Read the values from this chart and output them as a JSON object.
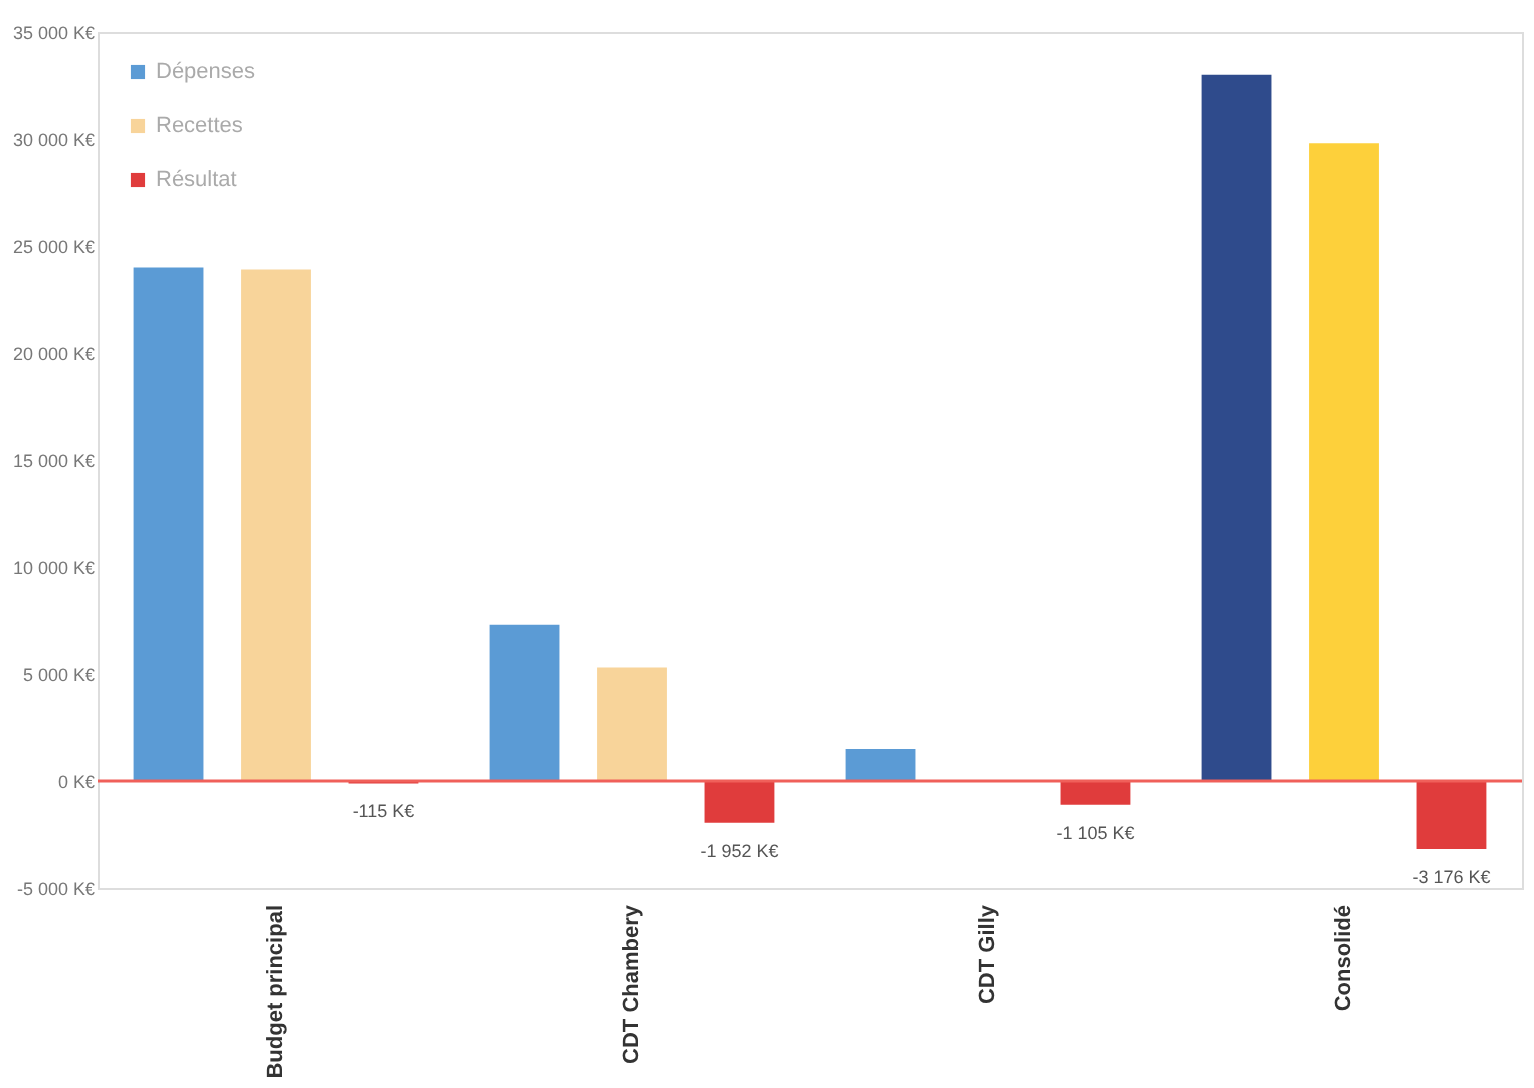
{
  "chart_data": {
    "type": "bar",
    "categories": [
      "Budget principal",
      "CDT Chambery",
      "CDT Gilly",
      "Consolidé"
    ],
    "series": [
      {
        "name": "Dépenses",
        "color": "#5b9bd5",
        "colors": [
          "#5b9bd5",
          "#5b9bd5",
          "#5b9bd5",
          "#2f4b8c"
        ],
        "values": [
          24000,
          7300,
          1500,
          33000
        ]
      },
      {
        "name": "Recettes",
        "color": "#f8d49a",
        "colors": [
          "#f8d49a",
          "#f8d49a",
          "#f8d49a",
          "#fdd03b"
        ],
        "values": [
          23900,
          5300,
          null,
          29800
        ]
      },
      {
        "name": "Résultat",
        "color": "#e03c3c",
        "colors": [
          "#e03c3c",
          "#e03c3c",
          "#e03c3c",
          "#e03c3c"
        ],
        "values": [
          -115,
          -1952,
          -1105,
          -3176
        ],
        "value_labels": [
          "-115 K€",
          "-1 952 K€",
          "-1 105 K€",
          "-3 176 K€"
        ]
      }
    ],
    "ylim": [
      -5000,
      35000
    ],
    "yticks": [
      {
        "value": -5000,
        "label": "-5 000 K€"
      },
      {
        "value": 0,
        "label": "0 K€"
      },
      {
        "value": 5000,
        "label": "5 000 K€"
      },
      {
        "value": 10000,
        "label": "10 000 K€"
      },
      {
        "value": 15000,
        "label": "15 000 K€"
      },
      {
        "value": 20000,
        "label": "20 000 K€"
      },
      {
        "value": 25000,
        "label": "25 000 K€"
      },
      {
        "value": 30000,
        "label": "30 000 K€"
      },
      {
        "value": 35000,
        "label": "35 000 K€"
      }
    ],
    "ref_lines": [
      {
        "axis": "y",
        "value": 0,
        "color": "#f0605a"
      }
    ],
    "grid": false,
    "legend": "top left"
  }
}
